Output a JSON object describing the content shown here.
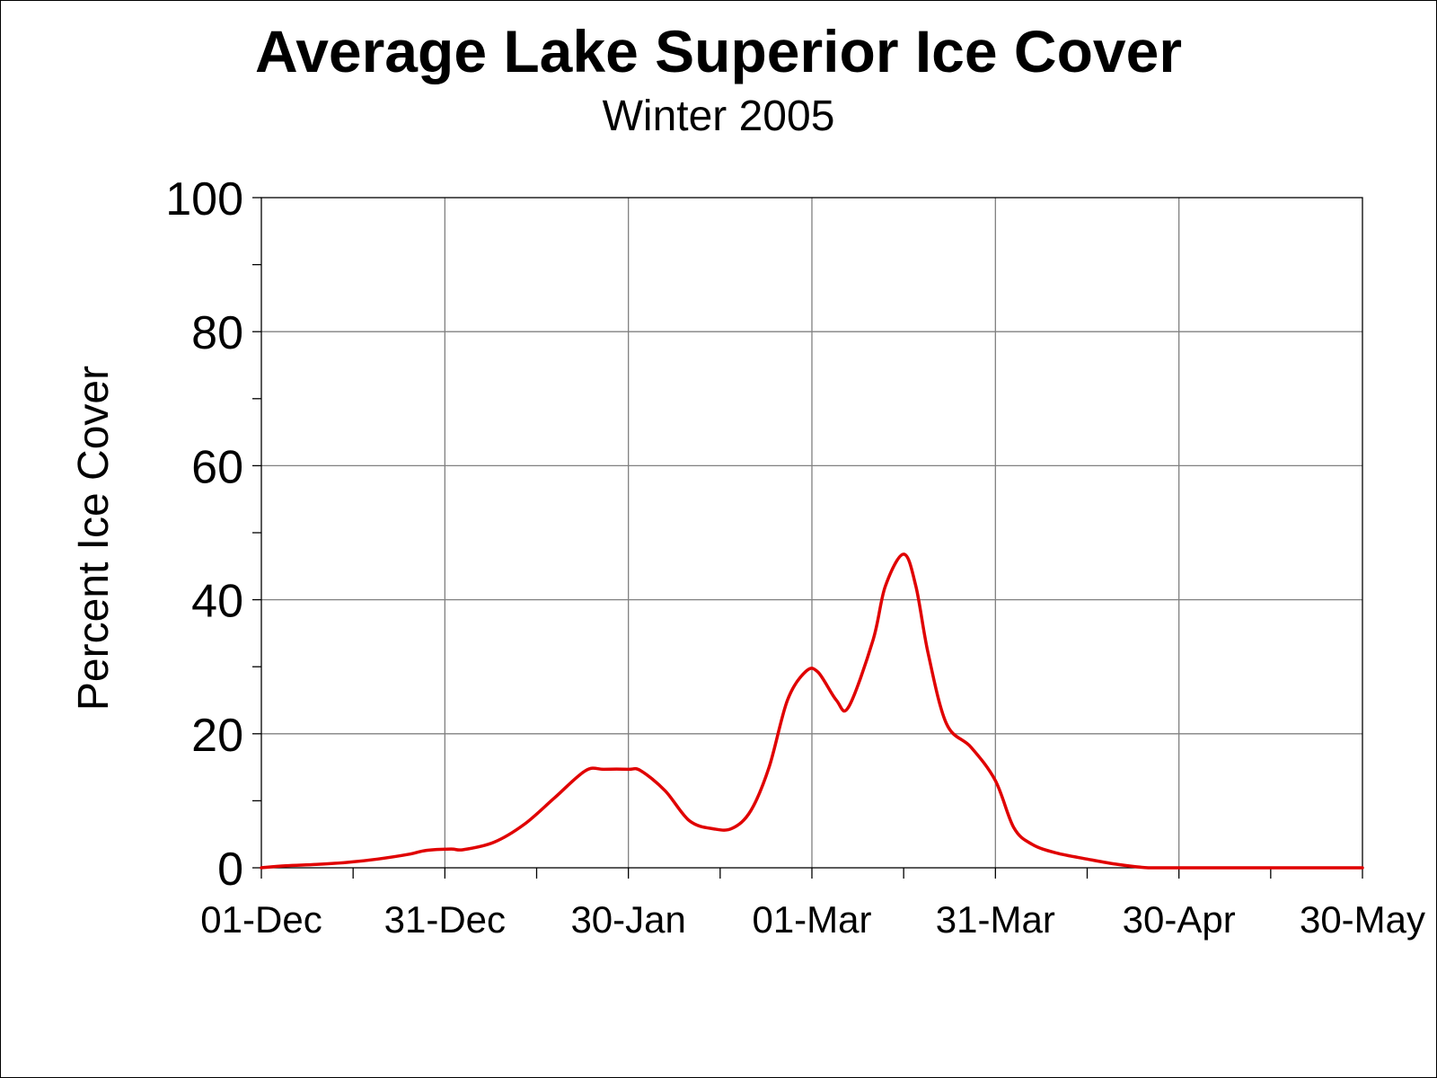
{
  "chart_data": {
    "type": "line",
    "title": "Average Lake Superior Ice Cover",
    "subtitle": "Winter 2005",
    "xlabel": "",
    "ylabel": "Percent Ice Cover",
    "ylim": [
      0,
      100
    ],
    "yticks": [
      "0",
      "20",
      "40",
      "60",
      "80",
      "100"
    ],
    "xlim": [
      "2004-12-01",
      "2005-05-30"
    ],
    "xtick_dates": [
      "2004-12-01",
      "2004-12-31",
      "2005-01-30",
      "2005-03-01",
      "2005-03-31",
      "2005-04-30",
      "2005-05-30"
    ],
    "xtick_labels": [
      "01-Dec",
      "31-Dec",
      "30-Jan",
      "01-Mar",
      "31-Mar",
      "30-Apr",
      "30-May"
    ],
    "grid": true,
    "line_color": "#e00000",
    "x": [
      "2004-12-01",
      "2004-12-05",
      "2004-12-10",
      "2004-12-15",
      "2004-12-20",
      "2004-12-25",
      "2004-12-28",
      "2005-01-01",
      "2005-01-03",
      "2005-01-08",
      "2005-01-13",
      "2005-01-18",
      "2005-01-23",
      "2005-01-26",
      "2005-01-30",
      "2005-02-01",
      "2005-02-05",
      "2005-02-09",
      "2005-02-13",
      "2005-02-16",
      "2005-02-19",
      "2005-02-22",
      "2005-02-25",
      "2005-02-28",
      "2005-03-02",
      "2005-03-05",
      "2005-03-07",
      "2005-03-11",
      "2005-03-13",
      "2005-03-16",
      "2005-03-18",
      "2005-03-20",
      "2005-03-23",
      "2005-03-27",
      "2005-03-31",
      "2005-04-03",
      "2005-04-06",
      "2005-04-10",
      "2005-04-15",
      "2005-04-20",
      "2005-04-25",
      "2005-04-30",
      "2005-05-10",
      "2005-05-20",
      "2005-05-30"
    ],
    "series": [
      {
        "values": [
          0.0,
          0.3,
          0.5,
          0.8,
          1.3,
          2.0,
          2.6,
          2.8,
          2.7,
          3.8,
          6.5,
          10.5,
          14.5,
          14.7,
          14.7,
          14.5,
          11.5,
          7.0,
          5.8,
          5.9,
          8.5,
          15.0,
          25.0,
          29.3,
          29.2,
          25.0,
          24.0,
          34.0,
          42.0,
          46.8,
          42.0,
          32.0,
          21.5,
          18.0,
          13.0,
          6.0,
          3.5,
          2.2,
          1.3,
          0.5,
          0.0,
          0.0,
          0.0,
          0.0,
          0.0
        ]
      }
    ]
  }
}
